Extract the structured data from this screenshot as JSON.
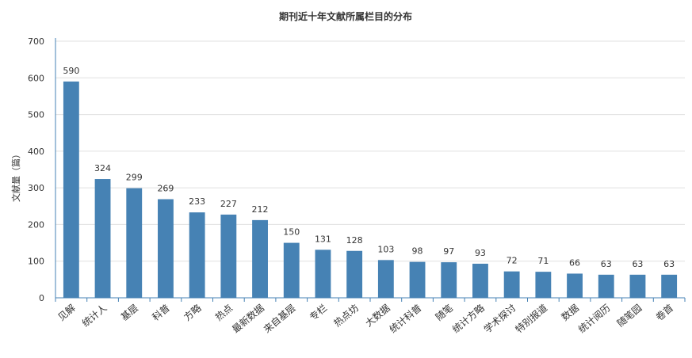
{
  "chart_data": {
    "type": "bar",
    "title": "期刊近十年文献所属栏目的分布",
    "xlabel": "",
    "ylabel": "文献量（篇）",
    "ylim": [
      0,
      700
    ],
    "yticks": [
      0,
      100,
      200,
      300,
      400,
      500,
      600,
      700
    ],
    "grid": true,
    "legend": "none",
    "categories": [
      "见解",
      "统计人",
      "基层",
      "科普",
      "方略",
      "热点",
      "最新数据",
      "来自基层",
      "专栏",
      "热点坊",
      "大数据",
      "统计科普",
      "随笔",
      "统计方略",
      "学术探讨",
      "特别报道",
      "数据",
      "统计阅历",
      "随笔园",
      "卷首"
    ],
    "values": [
      590,
      324,
      299,
      269,
      233,
      227,
      212,
      150,
      131,
      128,
      103,
      98,
      97,
      93,
      72,
      71,
      66,
      63,
      63,
      63
    ],
    "colors": {
      "bar": "#4682b4",
      "grid": "#e0e0e0",
      "axis": "#4682b4",
      "text": "#333333"
    }
  }
}
